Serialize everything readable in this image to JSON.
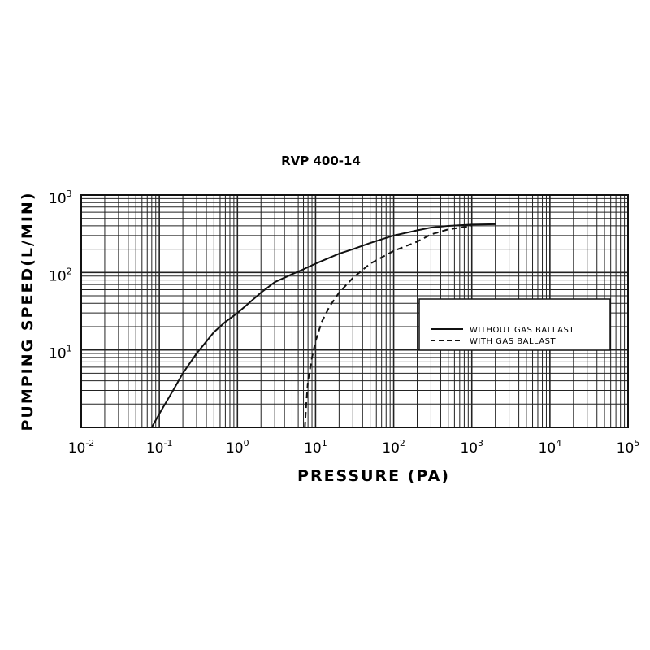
{
  "chart_data": {
    "type": "line",
    "title": "RVP 400-14",
    "xlabel": "PRESSURE (PA)",
    "ylabel": "PUMPING SPEED(L/MIN)",
    "xscale": "log",
    "yscale": "log",
    "xlim": [
      0.01,
      100000
    ],
    "ylim": [
      1,
      1000
    ],
    "x_ticks": [
      {
        "base": "10",
        "exp": "-2"
      },
      {
        "base": "10",
        "exp": "-1"
      },
      {
        "base": "10",
        "exp": "0"
      },
      {
        "base": "10",
        "exp": "1"
      },
      {
        "base": "10",
        "exp": "2"
      },
      {
        "base": "10",
        "exp": "3"
      },
      {
        "base": "10",
        "exp": "4"
      },
      {
        "base": "10",
        "exp": "5"
      }
    ],
    "y_ticks": [
      {
        "base": "10",
        "exp": "1"
      },
      {
        "base": "10",
        "exp": "2"
      },
      {
        "base": "10",
        "exp": "3"
      }
    ],
    "grid": true,
    "legend_position": "right",
    "series": [
      {
        "name": "WITHOUT GAS BALLAST",
        "style": "solid",
        "x": [
          0.08,
          0.1,
          0.15,
          0.2,
          0.3,
          0.5,
          0.7,
          1,
          2,
          3,
          5,
          7,
          10,
          20,
          30,
          50,
          100,
          200,
          300,
          500,
          1000,
          2000
        ],
        "y": [
          1,
          1.5,
          3,
          5,
          9,
          17,
          23,
          30,
          55,
          75,
          95,
          110,
          130,
          175,
          200,
          240,
          300,
          350,
          380,
          400,
          415,
          420
        ]
      },
      {
        "name": "WITH GAS BALLAST",
        "style": "dashed",
        "x": [
          7.3,
          7.6,
          8,
          9,
          10,
          12,
          15,
          20,
          30,
          50,
          100,
          200,
          300,
          500,
          1000
        ],
        "y": [
          1,
          2,
          4,
          8,
          13,
          23,
          36,
          55,
          85,
          130,
          190,
          250,
          310,
          360,
          400
        ]
      }
    ]
  }
}
